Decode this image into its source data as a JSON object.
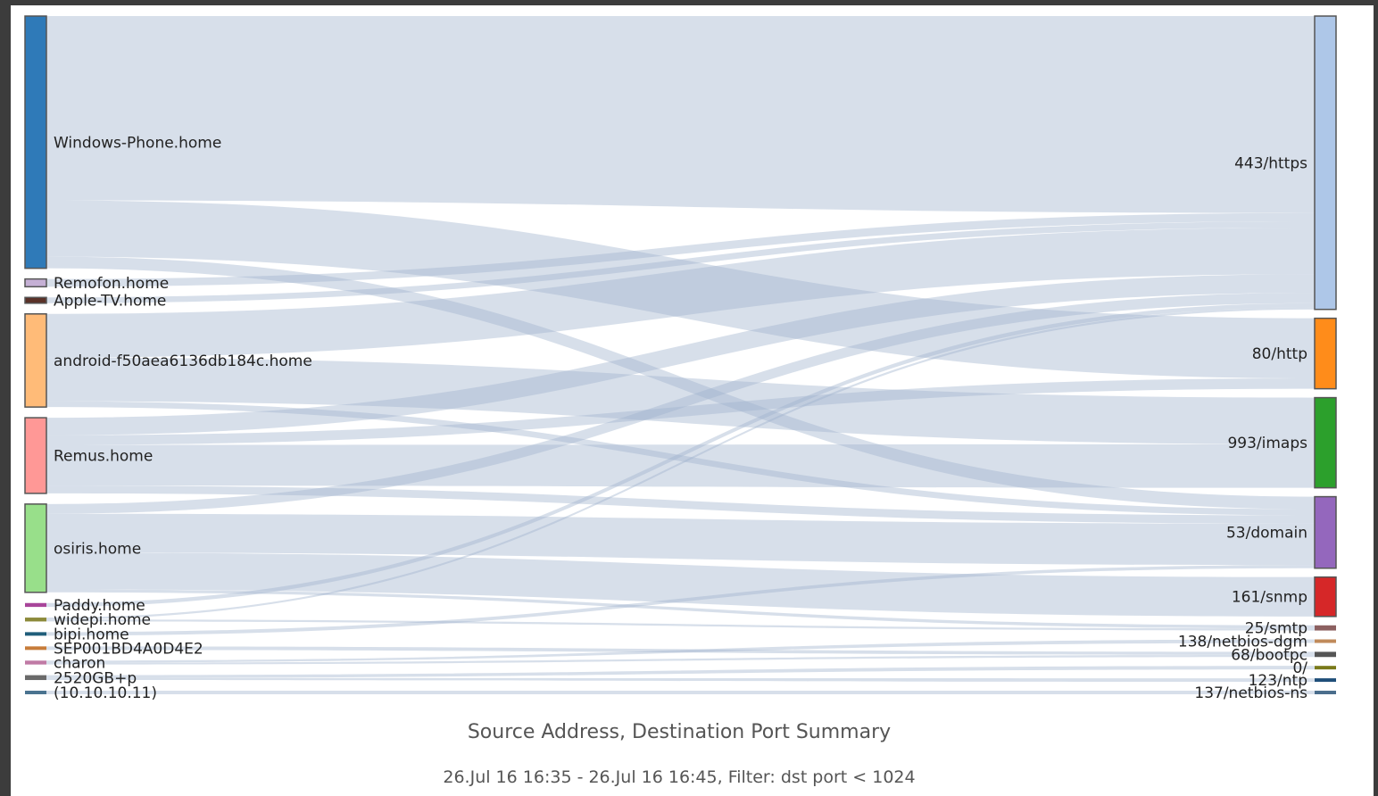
{
  "chart_data": {
    "type": "sankey",
    "title": "Source Address, Destination Port Summary",
    "subtitle": "26.Jul 16 16:35 - 26.Jul 16 16:45, Filter: dst port < 1024",
    "sources": [
      {
        "id": "s0",
        "label": "Windows-Phone.home",
        "color": "#2f7ab8"
      },
      {
        "id": "s1",
        "label": "Remofon.home",
        "color": "#c5b0d5"
      },
      {
        "id": "s2",
        "label": "Apple-TV.home",
        "color": "#5a3228"
      },
      {
        "id": "s3",
        "label": "android-f50aea6136db184c.home",
        "color": "#ffbb78"
      },
      {
        "id": "s4",
        "label": "Remus.home",
        "color": "#ff9896"
      },
      {
        "id": "s5",
        "label": "osiris.home",
        "color": "#98df8a"
      },
      {
        "id": "s6",
        "label": "Paddy.home",
        "color": "#a8459a"
      },
      {
        "id": "s7",
        "label": "widepi.home",
        "color": "#8c8a3a"
      },
      {
        "id": "s8",
        "label": "bipi.home",
        "color": "#1f5e7a"
      },
      {
        "id": "s9",
        "label": "SEP001BD4A0D4E2",
        "color": "#c77c3a"
      },
      {
        "id": "s10",
        "label": "charon",
        "color": "#c07aa5"
      },
      {
        "id": "s11",
        "label": "2520GB+p",
        "color": "#6a6a6a"
      },
      {
        "id": "s12",
        "label": "(10.10.10.11)",
        "color": "#4a7390"
      }
    ],
    "destinations": [
      {
        "id": "d0",
        "label": "443/https",
        "color": "#aec7e8"
      },
      {
        "id": "d1",
        "label": "80/http",
        "color": "#ff8c1a"
      },
      {
        "id": "d2",
        "label": "993/imaps",
        "color": "#2ca02c"
      },
      {
        "id": "d3",
        "label": "53/domain",
        "color": "#9467bd"
      },
      {
        "id": "d4",
        "label": "161/snmp",
        "color": "#d62728"
      },
      {
        "id": "d5",
        "label": "25/smtp",
        "color": "#8c6060"
      },
      {
        "id": "d6",
        "label": "138/netbios-dgm",
        "color": "#c08a5a"
      },
      {
        "id": "d7",
        "label": "68/bootpc",
        "color": "#555555"
      },
      {
        "id": "d8",
        "label": "0/",
        "color": "#7a7a1a"
      },
      {
        "id": "d9",
        "label": "123/ntp",
        "color": "#1f4e79"
      },
      {
        "id": "d10",
        "label": "137/netbios-ns",
        "color": "#4a6d8c"
      }
    ],
    "links": [
      {
        "source": "s0",
        "target": "d0",
        "value": 190
      },
      {
        "source": "s0",
        "target": "d1",
        "value": 58
      },
      {
        "source": "s0",
        "target": "d3",
        "value": 12
      },
      {
        "source": "s1",
        "target": "d0",
        "value": 8
      },
      {
        "source": "s2",
        "target": "d0",
        "value": 6
      },
      {
        "source": "s3",
        "target": "d0",
        "value": 45
      },
      {
        "source": "s3",
        "target": "d2",
        "value": 45
      },
      {
        "source": "s3",
        "target": "d3",
        "value": 6
      },
      {
        "source": "s4",
        "target": "d0",
        "value": 18
      },
      {
        "source": "s4",
        "target": "d1",
        "value": 10
      },
      {
        "source": "s4",
        "target": "d2",
        "value": 42
      },
      {
        "source": "s4",
        "target": "d3",
        "value": 8
      },
      {
        "source": "s5",
        "target": "d0",
        "value": 10
      },
      {
        "source": "s5",
        "target": "d3",
        "value": 40
      },
      {
        "source": "s5",
        "target": "d4",
        "value": 38
      },
      {
        "source": "s5",
        "target": "d5",
        "value": 3
      },
      {
        "source": "s6",
        "target": "d0",
        "value": 4
      },
      {
        "source": "s7",
        "target": "d0",
        "value": 2
      },
      {
        "source": "s7",
        "target": "d5",
        "value": 2
      },
      {
        "source": "s8",
        "target": "d3",
        "value": 3
      },
      {
        "source": "s9",
        "target": "d7",
        "value": 3
      },
      {
        "source": "s10",
        "target": "d6",
        "value": 2
      },
      {
        "source": "s10",
        "target": "d7",
        "value": 2
      },
      {
        "source": "s11",
        "target": "d8",
        "value": 3
      },
      {
        "source": "s11",
        "target": "d9",
        "value": 2
      },
      {
        "source": "s12",
        "target": "d10",
        "value": 3
      }
    ]
  }
}
